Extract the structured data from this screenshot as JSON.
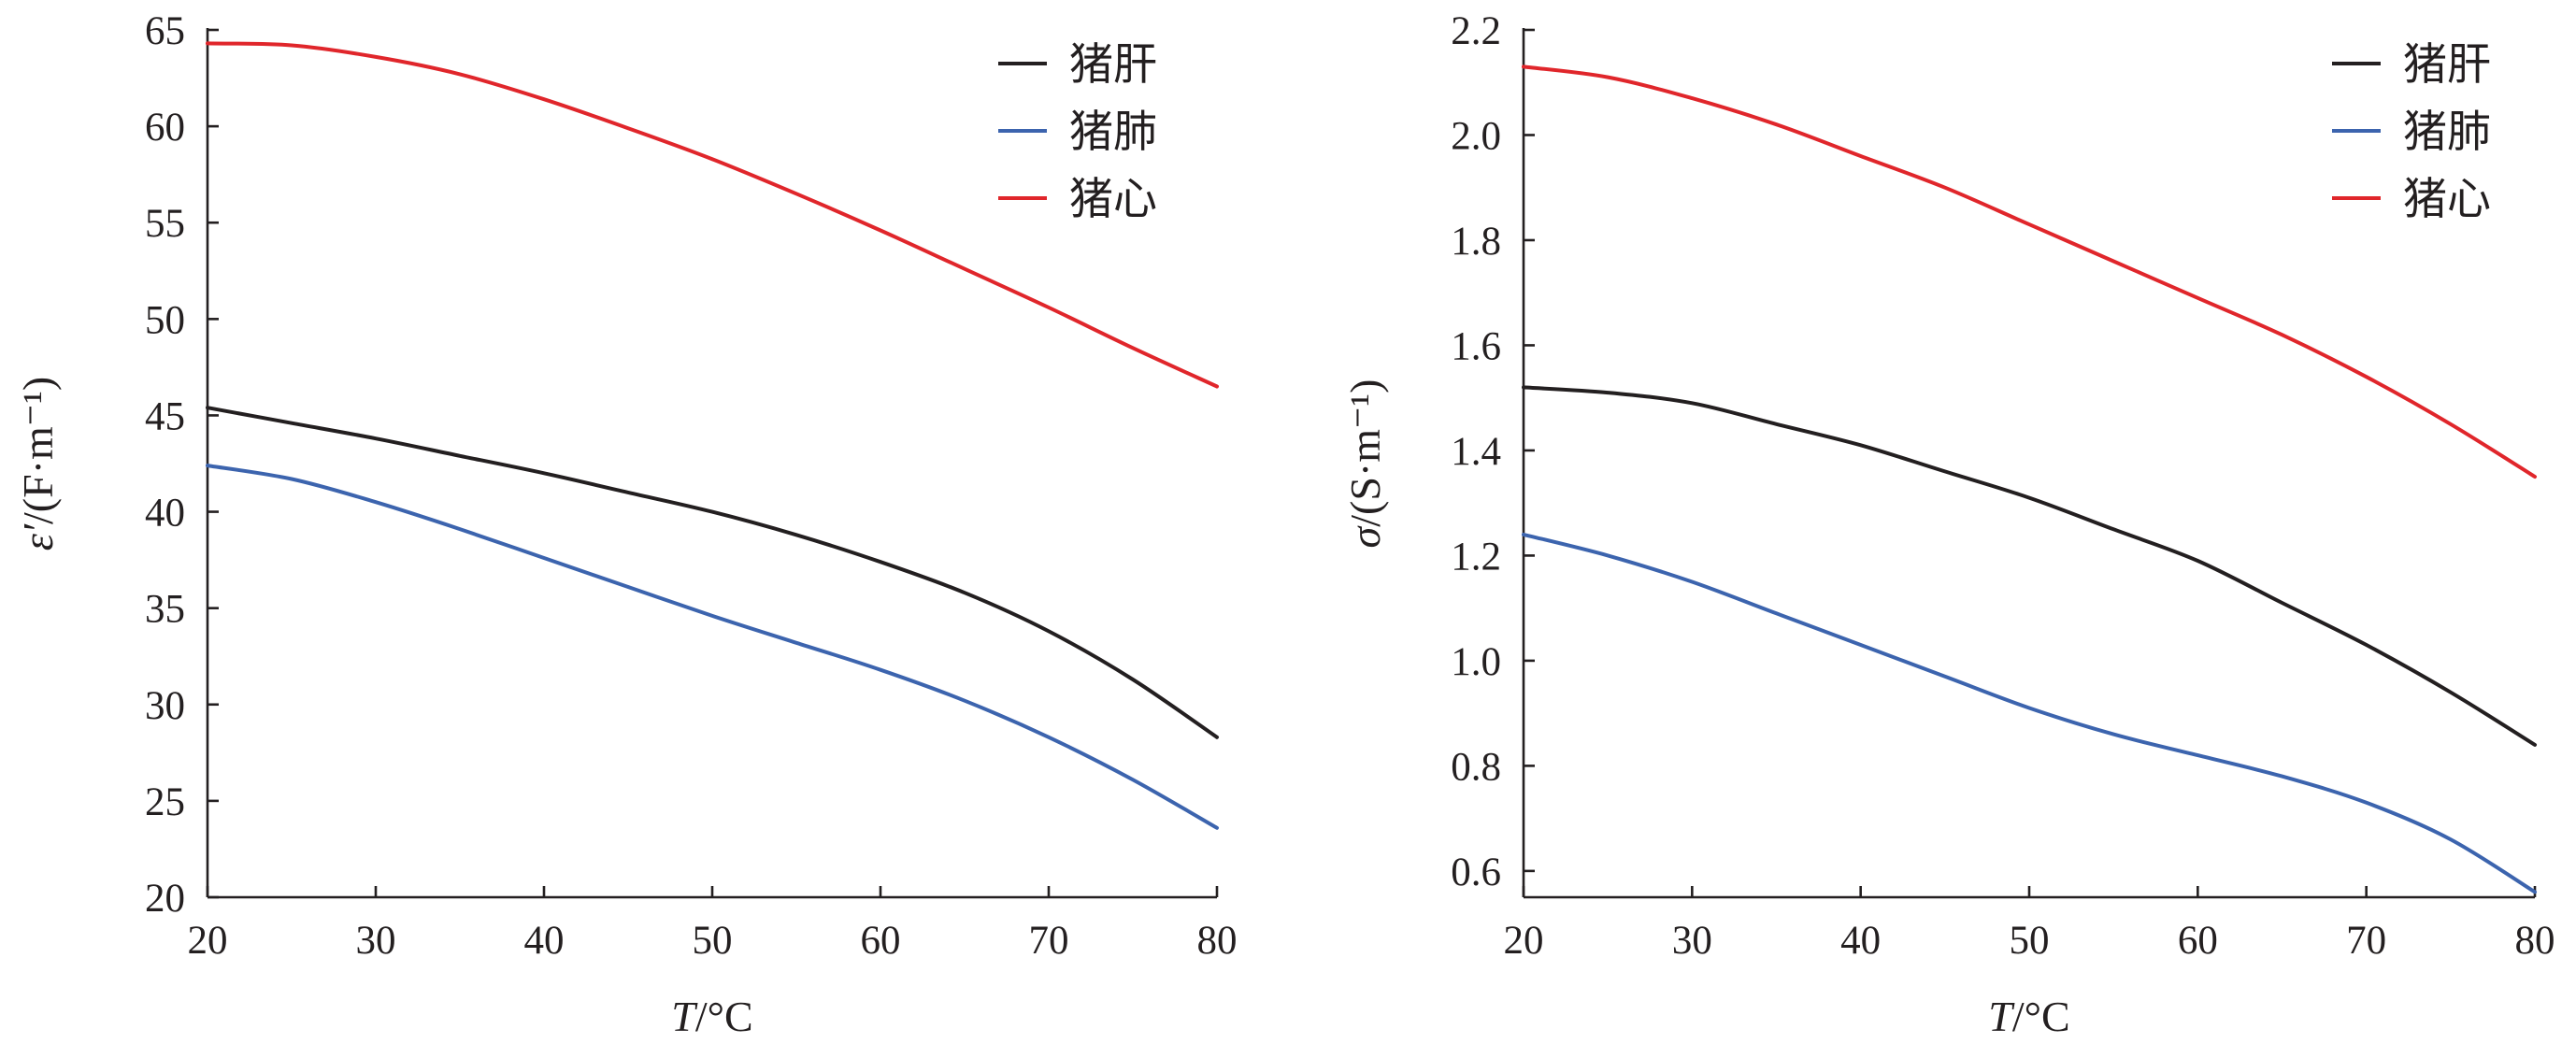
{
  "colors": {
    "black_series": "#231f20",
    "blue_series": "#3c64ae",
    "red_series": "#e0262b"
  },
  "chart_data": [
    {
      "type": "line",
      "title": "",
      "xlabel": "T/°C",
      "xlabel_italic": "T",
      "xlabel_rest": "/°C",
      "ylabel": "ε′/(F·m⁻¹)",
      "ylabel_italic": "ε′",
      "ylabel_rest": "/(F·m⁻¹)",
      "xlim": [
        20,
        80
      ],
      "ylim": [
        20,
        65
      ],
      "xticks": [
        20,
        30,
        40,
        50,
        60,
        70,
        80
      ],
      "xtick_labels": [
        "20",
        "30",
        "40",
        "50",
        "60",
        "70",
        "80"
      ],
      "yticks": [
        20,
        25,
        30,
        35,
        40,
        45,
        50,
        55,
        60,
        65
      ],
      "ytick_labels": [
        "20",
        "25",
        "30",
        "35",
        "40",
        "45",
        "50",
        "55",
        "60",
        "65"
      ],
      "grid": false,
      "legend_position": "top-right",
      "x": [
        20,
        25,
        30,
        35,
        40,
        45,
        50,
        55,
        60,
        65,
        70,
        75,
        80
      ],
      "series": [
        {
          "name": "猪肝",
          "color": "#231f20",
          "values": [
            45.4,
            44.6,
            43.8,
            42.9,
            42.0,
            41.0,
            40.0,
            38.8,
            37.4,
            35.8,
            33.8,
            31.3,
            28.3
          ]
        },
        {
          "name": "猪肺",
          "color": "#3c64ae",
          "values": [
            42.4,
            41.7,
            40.5,
            39.1,
            37.6,
            36.1,
            34.6,
            33.2,
            31.8,
            30.2,
            28.3,
            26.1,
            23.6
          ]
        },
        {
          "name": "猪心",
          "color": "#e0262b",
          "values": [
            64.3,
            64.2,
            63.6,
            62.7,
            61.4,
            59.9,
            58.3,
            56.5,
            54.6,
            52.6,
            50.6,
            48.5,
            46.5
          ]
        }
      ]
    },
    {
      "type": "line",
      "title": "",
      "xlabel": "T/°C",
      "xlabel_italic": "T",
      "xlabel_rest": "/°C",
      "ylabel": "σ/(S·m⁻¹)",
      "ylabel_italic": "σ",
      "ylabel_rest": "/(S·m⁻¹)",
      "xlim": [
        20,
        80
      ],
      "ylim": [
        0.55,
        2.2
      ],
      "xticks": [
        20,
        30,
        40,
        50,
        60,
        70,
        80
      ],
      "xtick_labels": [
        "20",
        "30",
        "40",
        "50",
        "60",
        "70",
        "80"
      ],
      "yticks": [
        0.6,
        0.8,
        1.0,
        1.2,
        1.4,
        1.6,
        1.8,
        2.0,
        2.2
      ],
      "ytick_labels": [
        "0.6",
        "0.8",
        "1.0",
        "1.2",
        "1.4",
        "1.6",
        "1.8",
        "2.0",
        "2.2"
      ],
      "grid": false,
      "legend_position": "top-right",
      "x": [
        20,
        25,
        30,
        35,
        40,
        45,
        50,
        55,
        60,
        65,
        70,
        75,
        80
      ],
      "series": [
        {
          "name": "猪肝",
          "color": "#231f20",
          "values": [
            1.52,
            1.51,
            1.49,
            1.45,
            1.41,
            1.36,
            1.31,
            1.25,
            1.19,
            1.11,
            1.03,
            0.94,
            0.84
          ]
        },
        {
          "name": "猪肺",
          "color": "#3c64ae",
          "values": [
            1.24,
            1.2,
            1.15,
            1.09,
            1.03,
            0.97,
            0.91,
            0.86,
            0.82,
            0.78,
            0.73,
            0.66,
            0.56
          ]
        },
        {
          "name": "猪心",
          "color": "#e0262b",
          "values": [
            2.13,
            2.11,
            2.07,
            2.02,
            1.96,
            1.9,
            1.83,
            1.76,
            1.69,
            1.62,
            1.54,
            1.45,
            1.35
          ]
        }
      ]
    }
  ]
}
